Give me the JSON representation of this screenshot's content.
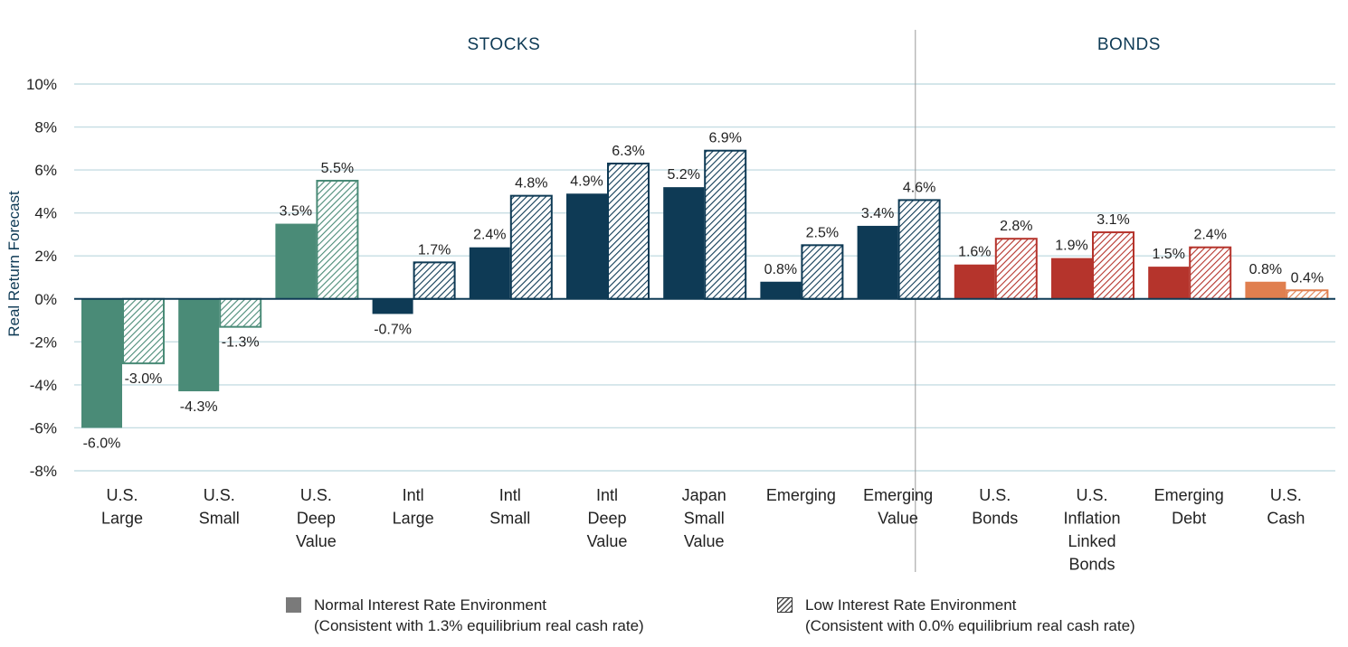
{
  "chart_data": {
    "type": "bar",
    "ylabel": "Real Return Forecast",
    "ylim": [
      -8,
      10
    ],
    "yticks": [
      -8,
      -6,
      -4,
      -2,
      0,
      2,
      4,
      6,
      8,
      10
    ],
    "ytick_labels": [
      "-8%",
      "-6%",
      "-4%",
      "-2%",
      "0%",
      "2%",
      "4%",
      "6%",
      "8%",
      "10%"
    ],
    "grid": true,
    "groups": [
      {
        "label": "STOCKS"
      },
      {
        "label": "BONDS"
      }
    ],
    "categories": [
      {
        "label": [
          "U.S.",
          "Large"
        ],
        "group": "STOCKS",
        "color": "#4a8b77"
      },
      {
        "label": [
          "U.S.",
          "Small"
        ],
        "group": "STOCKS",
        "color": "#4a8b77"
      },
      {
        "label": [
          "U.S.",
          "Deep",
          "Value"
        ],
        "group": "STOCKS",
        "color": "#4a8b77"
      },
      {
        "label": [
          "Intl",
          "Large"
        ],
        "group": "STOCKS",
        "color": "#0e3a55"
      },
      {
        "label": [
          "Intl",
          "Small"
        ],
        "group": "STOCKS",
        "color": "#0e3a55"
      },
      {
        "label": [
          "Intl",
          "Deep",
          "Value"
        ],
        "group": "STOCKS",
        "color": "#0e3a55"
      },
      {
        "label": [
          "Japan",
          "Small",
          "Value"
        ],
        "group": "STOCKS",
        "color": "#0e3a55"
      },
      {
        "label": [
          "Emerging"
        ],
        "group": "STOCKS",
        "color": "#0e3a55"
      },
      {
        "label": [
          "Emerging",
          "Value"
        ],
        "group": "STOCKS",
        "color": "#0e3a55"
      },
      {
        "label": [
          "U.S.",
          "Bonds"
        ],
        "group": "BONDS",
        "color": "#b5342c"
      },
      {
        "label": [
          "U.S.",
          "Inflation",
          "Linked",
          "Bonds"
        ],
        "group": "BONDS",
        "color": "#b5342c"
      },
      {
        "label": [
          "Emerging",
          "Debt"
        ],
        "group": "BONDS",
        "color": "#b5342c"
      },
      {
        "label": [
          "U.S.",
          "Cash"
        ],
        "group": "BONDS",
        "color": "#e07f4f"
      }
    ],
    "series": [
      {
        "name": "Normal Interest Rate Environment",
        "style": "solid",
        "values": [
          -6.0,
          -4.3,
          3.5,
          -0.7,
          2.4,
          4.9,
          5.2,
          0.8,
          3.4,
          1.6,
          1.9,
          1.5,
          0.8
        ],
        "labels": [
          "-6.0%",
          "-4.3%",
          "3.5%",
          "-0.7%",
          "2.4%",
          "4.9%",
          "5.2%",
          "0.8%",
          "3.4%",
          "1.6%",
          "1.9%",
          "1.5%",
          "0.8%"
        ]
      },
      {
        "name": "Low Interest Rate Environment",
        "style": "hatched",
        "values": [
          -3.0,
          -1.3,
          5.5,
          1.7,
          4.8,
          6.3,
          6.9,
          2.5,
          4.6,
          2.8,
          3.1,
          2.4,
          0.4
        ],
        "labels": [
          "-3.0%",
          "-1.3%",
          "5.5%",
          "1.7%",
          "4.8%",
          "6.3%",
          "6.9%",
          "2.5%",
          "4.6%",
          "2.8%",
          "3.1%",
          "2.4%",
          "0.4%"
        ]
      }
    ]
  },
  "legend": {
    "normal": {
      "line1": "Normal Interest Rate Environment",
      "line2": "(Consistent with 1.3% equilibrium real cash rate)"
    },
    "low": {
      "line1": "Low Interest Rate Environment",
      "line2": "(Consistent with 0.0% equilibrium real cash rate)"
    }
  }
}
